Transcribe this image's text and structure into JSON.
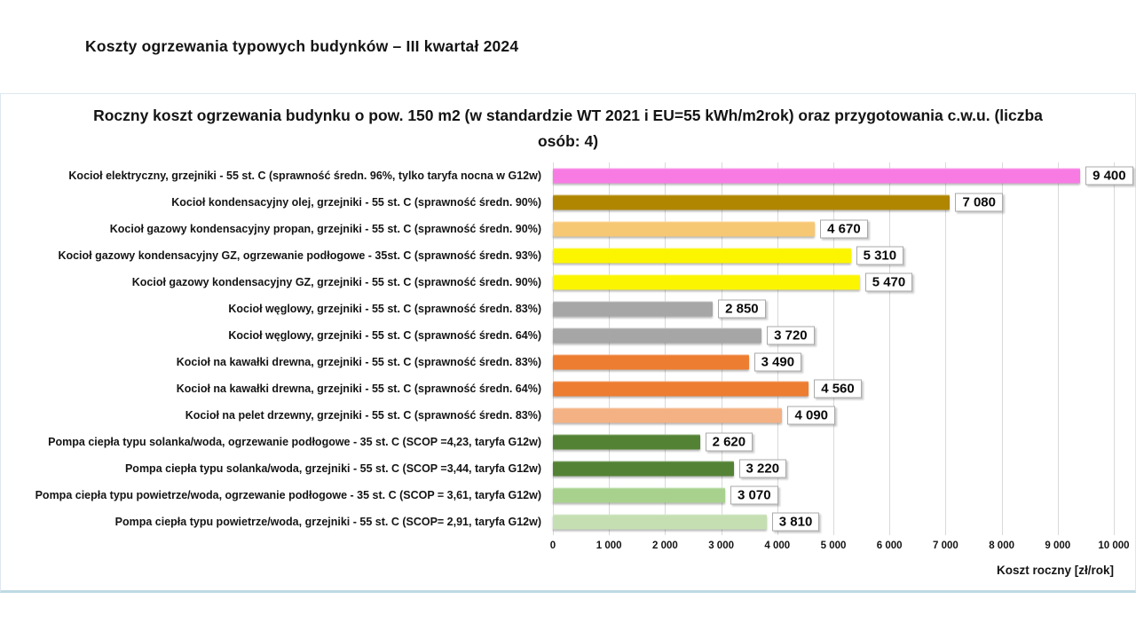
{
  "page_title": "Koszty ogrzewania typowych budynków – III kwartał 2024",
  "chart_data": {
    "type": "bar",
    "orientation": "horizontal",
    "title": "Roczny koszt ogrzewania budynku  o pow. 150 m2 (w standardzie WT 2021 i EU=55 kWh/m2rok) oraz przygotowania c.w.u. (liczba osób: 4)",
    "xlabel": "Koszt roczny [zł/rok]",
    "xlim": [
      0,
      10000
    ],
    "grid": true,
    "xticks": [
      0,
      1000,
      2000,
      3000,
      4000,
      5000,
      6000,
      7000,
      8000,
      9000,
      10000
    ],
    "xtick_labels": [
      "0",
      "1 000",
      "2 000",
      "3 000",
      "4 000",
      "5 000",
      "6 000",
      "7 000",
      "8 000",
      "9 000",
      "10 000"
    ],
    "categories": [
      "Kocioł  elektryczny,  grzejniki - 55 st. C  (sprawność średn. 96%, tylko taryfa nocna w G12w)",
      "Kocioł  kondensacyjny olej,  grzejniki - 55 st. C   (sprawność średn. 90%)",
      "Kocioł gazowy kondensacyjny propan, grzejniki - 55 st. C  (sprawność średn. 90%)",
      "Kocioł gazowy kondensacyjny GZ, ogrzewanie podłogowe - 35st. C   (sprawność średn. 93%)",
      "Kocioł gazowy kondensacyjny GZ, grzejniki - 55 st. C   (sprawność średn. 90%)",
      "Kocioł węglowy,  grzejniki - 55 st. C   (sprawność średn. 83%)",
      "Kocioł węglowy,  grzejniki - 55 st. C  (sprawność średn. 64%)",
      "Kocioł na kawałki drewna, grzejniki - 55 st. C (sprawność średn. 83%)",
      "Kocioł na kawałki drewna, grzejniki - 55 st. C  (sprawność średn. 64%)",
      "Kocioł na pelet drzewny, grzejniki - 55 st. C (sprawność średn. 83%)",
      "Pompa ciepła typu solanka/woda, ogrzewanie podłogowe - 35 st. C  (SCOP =4,23, taryfa G12w)",
      "Pompa ciepła typu solanka/woda, grzejniki - 55 st. C (SCOP =3,44, taryfa G12w)",
      "Pompa ciepła typu powietrze/woda, ogrzewanie podłogowe - 35 st. C (SCOP = 3,61, taryfa G12w)",
      "Pompa ciepła typu powietrze/woda, grzejniki - 55 st. C (SCOP= 2,91, taryfa G12w)"
    ],
    "values": [
      9400,
      7080,
      4670,
      5310,
      5470,
      2850,
      3720,
      3490,
      4560,
      4090,
      2620,
      3220,
      3070,
      3810
    ],
    "value_labels": [
      "9 400",
      "7 080",
      "4 670",
      "5 310",
      "5 470",
      "2 850",
      "3 720",
      "3 490",
      "4 560",
      "4 090",
      "2 620",
      "3 220",
      "3 070",
      "3 810"
    ],
    "bar_colors": [
      "#F87BE4",
      "#B08600",
      "#F7C873",
      "#FBF500",
      "#FBF500",
      "#A6A6A6",
      "#A6A6A6",
      "#ED7D31",
      "#ED7D31",
      "#F4B183",
      "#548235",
      "#548235",
      "#A9D18E",
      "#C5DFB3"
    ],
    "gridline_color": "#d9d9d9",
    "frame_border_color": "#bedae4"
  }
}
